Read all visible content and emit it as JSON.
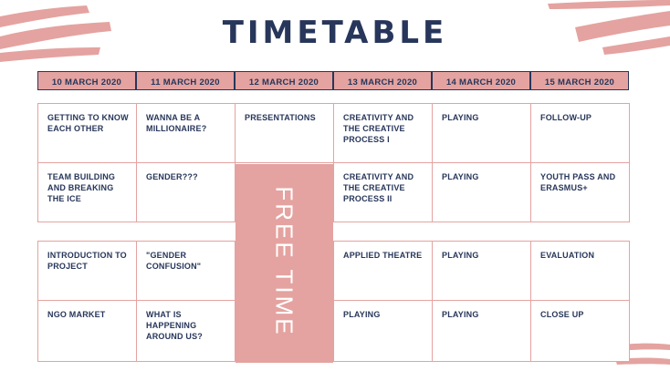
{
  "title": "TIMETABLE",
  "colors": {
    "accent": "#e4a3a0",
    "navy": "#27365a",
    "background": "#ffffff"
  },
  "headers": [
    "10 MARCH 2020",
    "11 MARCH 2020",
    "12 MARCH 2020",
    "13 MARCH 2020",
    "14 MARCH 2020",
    "15 MARCH 2020"
  ],
  "rows": [
    [
      "GETTING TO KNOW EACH OTHER",
      "WANNA BE A MILLIONAIRE?",
      "PRESENTATIONS",
      "CREATIVITY AND THE CREATIVE PROCESS I",
      "PLAYING",
      "FOLLOW-UP"
    ],
    [
      "TEAM BUILDING AND BREAKING THE ICE",
      "GENDER???",
      "",
      "CREATIVITY AND THE CREATIVE PROCESS II",
      "PLAYING",
      "YOUTH PASS  AND ERASMUS+"
    ],
    [
      "INTRODUCTION TO PROJECT",
      "\"GENDER CONFUSION\"",
      "",
      "APPLIED THEATRE",
      "PLAYING",
      "EVALUATION"
    ],
    [
      "NGO MARKET",
      "WHAT IS HAPPENING AROUND US?",
      "",
      "PLAYING",
      "PLAYING",
      "CLOSE UP"
    ]
  ],
  "free_time": "FREE TIME"
}
